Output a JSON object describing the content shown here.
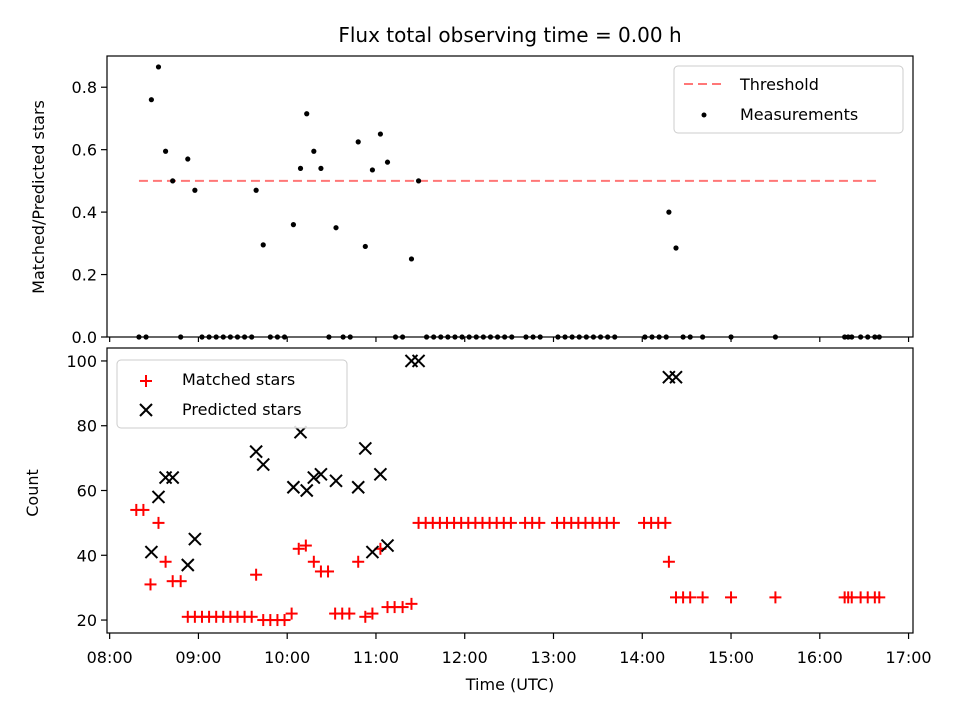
{
  "chart_data": {
    "type": "scatter",
    "title": "Flux total observing time = 0.00 h",
    "xlabel": "Time (UTC)",
    "x_tick_labels": [
      "08:00",
      "09:00",
      "10:00",
      "11:00",
      "12:00",
      "13:00",
      "14:00",
      "15:00",
      "16:00",
      "17:00"
    ],
    "x_ticks": [
      8,
      9,
      10,
      11,
      12,
      13,
      14,
      15,
      16,
      17
    ],
    "xlim": [
      7.97,
      17.05
    ],
    "top": {
      "ylabel": "Matched/Predicted stars",
      "ylim": [
        0,
        0.9
      ],
      "y_ticks": [
        0,
        0.2,
        0.4,
        0.6,
        0.8
      ],
      "y_tick_labels": [
        "0.0",
        "0.2",
        "0.4",
        "0.6",
        "0.8"
      ],
      "legend": {
        "threshold": "Threshold",
        "measurements": "Measurements"
      },
      "colors": {
        "threshold": "#ff7777",
        "measurements": "#000000"
      },
      "threshold": {
        "y": 0.5,
        "x": [
          8.33,
          16.67
        ]
      },
      "measurements": [
        [
          8.33,
          0
        ],
        [
          8.41,
          0
        ],
        [
          8.47,
          0.76
        ],
        [
          8.55,
          0.865
        ],
        [
          8.63,
          0.595
        ],
        [
          8.71,
          0.5
        ],
        [
          8.8,
          0
        ],
        [
          8.88,
          0.57
        ],
        [
          8.96,
          0.47
        ],
        [
          9.04,
          0
        ],
        [
          9.12,
          0
        ],
        [
          9.2,
          0
        ],
        [
          9.28,
          0
        ],
        [
          9.36,
          0
        ],
        [
          9.44,
          0
        ],
        [
          9.52,
          0
        ],
        [
          9.6,
          0
        ],
        [
          9.65,
          0.47
        ],
        [
          9.73,
          0.295
        ],
        [
          9.81,
          0
        ],
        [
          9.89,
          0
        ],
        [
          9.97,
          0
        ],
        [
          10.07,
          0.36
        ],
        [
          10.15,
          0.54
        ],
        [
          10.22,
          0.715
        ],
        [
          10.3,
          0.595
        ],
        [
          10.38,
          0.54
        ],
        [
          10.47,
          0
        ],
        [
          10.55,
          0.35
        ],
        [
          10.63,
          0
        ],
        [
          10.71,
          0
        ],
        [
          10.8,
          0.625
        ],
        [
          10.88,
          0.29
        ],
        [
          10.96,
          0.535
        ],
        [
          11.05,
          0.65
        ],
        [
          11.13,
          0.56
        ],
        [
          11.22,
          0
        ],
        [
          11.3,
          0
        ],
        [
          11.4,
          0.25
        ],
        [
          11.48,
          0.5
        ],
        [
          11.57,
          0
        ],
        [
          11.65,
          0
        ],
        [
          11.73,
          0
        ],
        [
          11.81,
          0
        ],
        [
          11.89,
          0
        ],
        [
          11.97,
          0
        ],
        [
          12.05,
          0
        ],
        [
          12.13,
          0
        ],
        [
          12.21,
          0
        ],
        [
          12.29,
          0
        ],
        [
          12.37,
          0
        ],
        [
          12.45,
          0
        ],
        [
          12.53,
          0
        ],
        [
          12.69,
          0
        ],
        [
          12.77,
          0
        ],
        [
          12.85,
          0
        ],
        [
          13.05,
          0
        ],
        [
          13.13,
          0
        ],
        [
          13.21,
          0
        ],
        [
          13.29,
          0
        ],
        [
          13.37,
          0
        ],
        [
          13.45,
          0
        ],
        [
          13.53,
          0
        ],
        [
          13.61,
          0
        ],
        [
          13.69,
          0
        ],
        [
          14.03,
          0
        ],
        [
          14.11,
          0
        ],
        [
          14.19,
          0
        ],
        [
          14.27,
          0
        ],
        [
          14.3,
          0.4
        ],
        [
          14.38,
          0.285
        ],
        [
          14.46,
          0
        ],
        [
          14.54,
          0
        ],
        [
          14.68,
          0
        ],
        [
          15.0,
          0
        ],
        [
          15.5,
          0
        ],
        [
          16.28,
          0
        ],
        [
          16.32,
          0
        ],
        [
          16.36,
          0
        ],
        [
          16.46,
          0
        ],
        [
          16.54,
          0
        ],
        [
          16.62,
          0
        ],
        [
          16.67,
          0
        ]
      ]
    },
    "bottom": {
      "ylabel": "Count",
      "ylim": [
        16,
        104
      ],
      "y_ticks": [
        20,
        40,
        60,
        80,
        100
      ],
      "y_tick_labels": [
        "20",
        "40",
        "60",
        "80",
        "100"
      ],
      "legend": {
        "matched": "Matched stars",
        "predicted": "Predicted stars"
      },
      "colors": {
        "matched": "#ff0000",
        "predicted": "#000000"
      },
      "matched": [
        [
          8.3,
          54
        ],
        [
          8.38,
          54
        ],
        [
          8.46,
          31
        ],
        [
          8.55,
          50
        ],
        [
          8.63,
          38
        ],
        [
          8.71,
          32
        ],
        [
          8.8,
          32
        ],
        [
          8.88,
          21
        ],
        [
          8.96,
          21
        ],
        [
          9.04,
          21
        ],
        [
          9.12,
          21
        ],
        [
          9.2,
          21
        ],
        [
          9.28,
          21
        ],
        [
          9.36,
          21
        ],
        [
          9.44,
          21
        ],
        [
          9.52,
          21
        ],
        [
          9.6,
          21
        ],
        [
          9.65,
          34
        ],
        [
          9.73,
          20
        ],
        [
          9.81,
          20
        ],
        [
          9.89,
          20
        ],
        [
          9.97,
          20
        ],
        [
          10.05,
          22
        ],
        [
          10.13,
          42
        ],
        [
          10.21,
          43
        ],
        [
          10.3,
          38
        ],
        [
          10.38,
          35
        ],
        [
          10.46,
          35
        ],
        [
          10.54,
          22
        ],
        [
          10.62,
          22
        ],
        [
          10.7,
          22
        ],
        [
          10.8,
          38
        ],
        [
          10.88,
          21
        ],
        [
          10.96,
          22
        ],
        [
          11.05,
          42
        ],
        [
          11.13,
          24
        ],
        [
          11.21,
          24
        ],
        [
          11.3,
          24
        ],
        [
          11.4,
          25
        ],
        [
          11.48,
          50
        ],
        [
          11.56,
          50
        ],
        [
          11.64,
          50
        ],
        [
          11.72,
          50
        ],
        [
          11.8,
          50
        ],
        [
          11.88,
          50
        ],
        [
          11.96,
          50
        ],
        [
          12.04,
          50
        ],
        [
          12.12,
          50
        ],
        [
          12.2,
          50
        ],
        [
          12.28,
          50
        ],
        [
          12.36,
          50
        ],
        [
          12.44,
          50
        ],
        [
          12.52,
          50
        ],
        [
          12.68,
          50
        ],
        [
          12.76,
          50
        ],
        [
          12.84,
          50
        ],
        [
          13.04,
          50
        ],
        [
          13.12,
          50
        ],
        [
          13.2,
          50
        ],
        [
          13.28,
          50
        ],
        [
          13.36,
          50
        ],
        [
          13.44,
          50
        ],
        [
          13.52,
          50
        ],
        [
          13.6,
          50
        ],
        [
          13.68,
          50
        ],
        [
          14.02,
          50
        ],
        [
          14.1,
          50
        ],
        [
          14.18,
          50
        ],
        [
          14.26,
          50
        ],
        [
          14.3,
          38
        ],
        [
          14.38,
          27
        ],
        [
          14.46,
          27
        ],
        [
          14.54,
          27
        ],
        [
          14.68,
          27
        ],
        [
          15.0,
          27
        ],
        [
          15.5,
          27
        ],
        [
          16.28,
          27
        ],
        [
          16.32,
          27
        ],
        [
          16.36,
          27
        ],
        [
          16.46,
          27
        ],
        [
          16.54,
          27
        ],
        [
          16.62,
          27
        ],
        [
          16.67,
          27
        ]
      ],
      "predicted": [
        [
          8.47,
          41
        ],
        [
          8.55,
          58
        ],
        [
          8.63,
          64
        ],
        [
          8.71,
          64
        ],
        [
          8.88,
          37
        ],
        [
          8.96,
          45
        ],
        [
          9.65,
          72
        ],
        [
          9.73,
          68
        ],
        [
          10.07,
          61
        ],
        [
          10.15,
          78
        ],
        [
          10.22,
          60
        ],
        [
          10.3,
          64
        ],
        [
          10.38,
          65
        ],
        [
          10.55,
          63
        ],
        [
          10.8,
          61
        ],
        [
          10.88,
          73
        ],
        [
          10.96,
          41
        ],
        [
          11.05,
          65
        ],
        [
          11.13,
          43
        ],
        [
          11.4,
          100
        ],
        [
          11.48,
          100
        ],
        [
          14.3,
          95
        ],
        [
          14.38,
          95
        ]
      ]
    }
  }
}
